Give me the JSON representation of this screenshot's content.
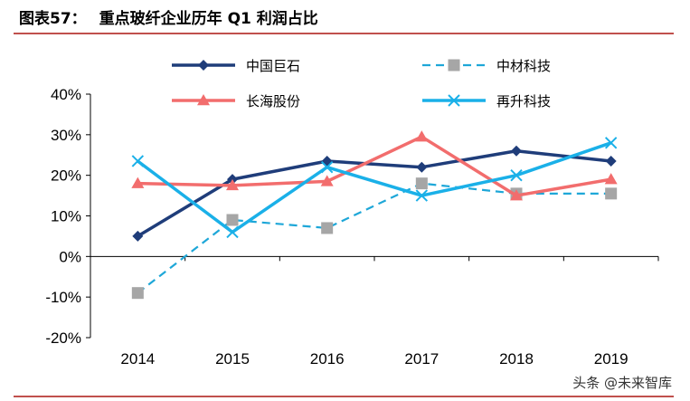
{
  "header": {
    "figure_label": "图表57：",
    "title": "重点玻纤企业历年 Q1 利润占比"
  },
  "watermark": "头条 @未来智库",
  "chart_data": {
    "type": "line",
    "title": "重点玻纤企业历年 Q1 利润占比",
    "categories": [
      "2014",
      "2015",
      "2016",
      "2017",
      "2018",
      "2019"
    ],
    "ylim": [
      -0.2,
      0.4
    ],
    "yticks": [
      -0.2,
      -0.1,
      0,
      0.1,
      0.2,
      0.3,
      0.4
    ],
    "ytick_labels": [
      "-20%",
      "-10%",
      "0%",
      "10%",
      "20%",
      "30%",
      "40%"
    ],
    "grid": false,
    "legend_position": "top",
    "series": [
      {
        "name": "中国巨石",
        "values": [
          0.05,
          0.19,
          0.235,
          0.22,
          0.26,
          0.235
        ],
        "color": "#1f3d7a",
        "marker": "diamond",
        "dash": false
      },
      {
        "name": "中材科技",
        "values": [
          -0.09,
          0.09,
          0.07,
          0.18,
          0.155,
          0.155
        ],
        "color": "#1ea7d8",
        "marker": "square",
        "marker_color": "#a6a6a6",
        "dash": true
      },
      {
        "name": "长海股份",
        "values": [
          0.18,
          0.175,
          0.185,
          0.295,
          0.15,
          0.19
        ],
        "color": "#f26d6d",
        "marker": "triangle",
        "dash": false
      },
      {
        "name": "再升科技",
        "values": [
          0.235,
          0.06,
          0.22,
          0.15,
          0.2,
          0.28
        ],
        "color": "#1ab0e8",
        "marker": "cross",
        "dash": false
      }
    ]
  }
}
